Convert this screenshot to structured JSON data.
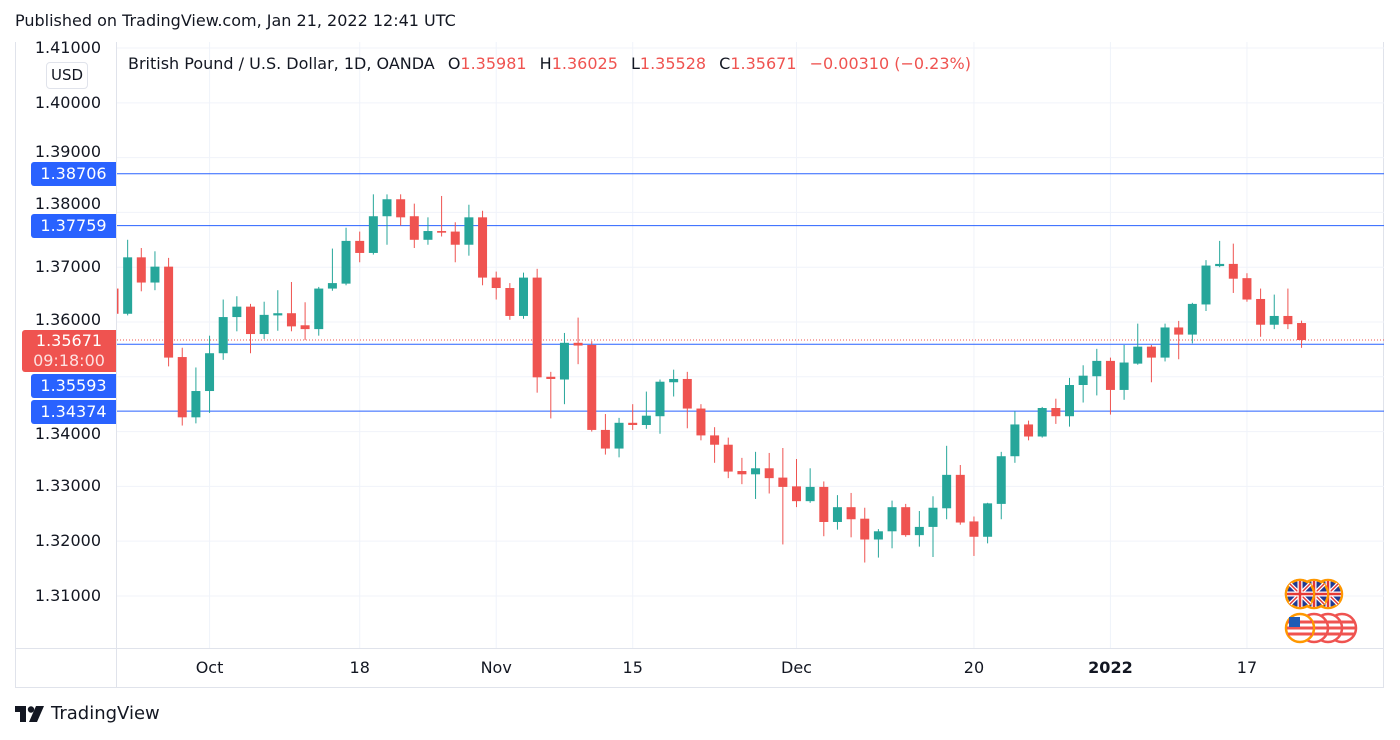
{
  "published": "Published on TradingView.com, Jan 21, 2022 12:41 UTC",
  "currency_badge": "USD",
  "legend": {
    "symbol": "British Pound / U.S. Dollar, 1D, OANDA",
    "o_key": "O",
    "o_val": "1.35981",
    "h_key": "H",
    "h_val": "1.36025",
    "l_key": "L",
    "l_val": "1.35528",
    "c_key": "C",
    "c_val": "1.35671",
    "change": "−0.00310 (−0.23%)"
  },
  "colors": {
    "up": "#26a69a",
    "down": "#ef5350",
    "level": "#2962ff",
    "grid": "#f0f3fa"
  },
  "footer": {
    "brand": "TradingView"
  },
  "chart_data": {
    "type": "candlestick",
    "title": "British Pound / U.S. Dollar, 1D, OANDA",
    "ylim": [
      1.3005,
      1.4111
    ],
    "grid": true,
    "price_ticks": [
      {
        "label": "1.41000",
        "value": 1.41
      },
      {
        "label": "1.40000",
        "value": 1.4
      },
      {
        "label": "1.39000",
        "value": 1.39
      },
      {
        "label": "1.38000",
        "value": 1.38
      },
      {
        "label": "1.37000",
        "value": 1.37
      },
      {
        "label": "1.36000",
        "value": 1.36
      },
      {
        "label": "1.34000",
        "value": 1.34
      },
      {
        "label": "1.33000",
        "value": 1.33
      },
      {
        "label": "1.32000",
        "value": 1.32
      },
      {
        "label": "1.31000",
        "value": 1.31
      }
    ],
    "time_ticks": [
      {
        "label": "Oct",
        "bar": 7,
        "bold": false
      },
      {
        "label": "18",
        "bar": 18,
        "bold": false
      },
      {
        "label": "Nov",
        "bar": 28,
        "bold": false
      },
      {
        "label": "15",
        "bar": 38,
        "bold": false
      },
      {
        "label": "Dec",
        "bar": 50,
        "bold": false
      },
      {
        "label": "20",
        "bar": 63,
        "bold": false
      },
      {
        "label": "2022",
        "bar": 73,
        "bold": true
      },
      {
        "label": "17",
        "bar": 83,
        "bold": false
      }
    ],
    "levels": [
      {
        "label": "1.38706",
        "value": 1.38706
      },
      {
        "label": "1.37759",
        "value": 1.37759
      },
      {
        "label": "1.35593",
        "value": 1.35593
      },
      {
        "label": "1.34374",
        "value": 1.34374
      }
    ],
    "current_price": {
      "label": "1.35671",
      "value": 1.35671,
      "countdown": "09:18:00"
    },
    "ohlc": [
      [
        1.3661,
        1.3665,
        1.3612,
        1.3615
      ],
      [
        1.3615,
        1.375,
        1.3612,
        1.3718
      ],
      [
        1.3718,
        1.3735,
        1.3656,
        1.3672
      ],
      [
        1.3672,
        1.3729,
        1.3658,
        1.3701
      ],
      [
        1.3701,
        1.3717,
        1.3519,
        1.3535
      ],
      [
        1.3536,
        1.3553,
        1.3411,
        1.3426
      ],
      [
        1.3426,
        1.3517,
        1.3415,
        1.3474
      ],
      [
        1.3474,
        1.3575,
        1.3434,
        1.3543
      ],
      [
        1.3543,
        1.3641,
        1.3531,
        1.3609
      ],
      [
        1.3609,
        1.3647,
        1.3583,
        1.3628
      ],
      [
        1.3628,
        1.3633,
        1.3543,
        1.3578
      ],
      [
        1.3578,
        1.3637,
        1.3569,
        1.3613
      ],
      [
        1.3612,
        1.3658,
        1.3584,
        1.3616
      ],
      [
        1.3616,
        1.3673,
        1.3583,
        1.3592
      ],
      [
        1.3594,
        1.3636,
        1.3567,
        1.3587
      ],
      [
        1.3587,
        1.3664,
        1.3575,
        1.3661
      ],
      [
        1.3661,
        1.3734,
        1.3657,
        1.3671
      ],
      [
        1.367,
        1.3772,
        1.3667,
        1.3748
      ],
      [
        1.3748,
        1.3765,
        1.3709,
        1.3726
      ],
      [
        1.3726,
        1.3833,
        1.3723,
        1.3793
      ],
      [
        1.3793,
        1.3833,
        1.3741,
        1.3824
      ],
      [
        1.3824,
        1.3833,
        1.3776,
        1.3791
      ],
      [
        1.3793,
        1.3816,
        1.3735,
        1.375
      ],
      [
        1.375,
        1.3791,
        1.3741,
        1.3766
      ],
      [
        1.3766,
        1.383,
        1.3756,
        1.3763
      ],
      [
        1.3765,
        1.3782,
        1.3709,
        1.3741
      ],
      [
        1.3741,
        1.3814,
        1.3721,
        1.3791
      ],
      [
        1.3791,
        1.3803,
        1.3667,
        1.3681
      ],
      [
        1.3681,
        1.3692,
        1.3641,
        1.3662
      ],
      [
        1.3662,
        1.3671,
        1.3604,
        1.3611
      ],
      [
        1.3611,
        1.369,
        1.3606,
        1.3681
      ],
      [
        1.3681,
        1.3697,
        1.3471,
        1.3499
      ],
      [
        1.35,
        1.3509,
        1.3424,
        1.3496
      ],
      [
        1.3495,
        1.358,
        1.345,
        1.3562
      ],
      [
        1.3562,
        1.3608,
        1.3523,
        1.3557
      ],
      [
        1.3558,
        1.3565,
        1.34,
        1.3403
      ],
      [
        1.3403,
        1.3432,
        1.3358,
        1.3369
      ],
      [
        1.3369,
        1.3425,
        1.3353,
        1.3416
      ],
      [
        1.3416,
        1.345,
        1.3403,
        1.3412
      ],
      [
        1.3412,
        1.3473,
        1.3405,
        1.3429
      ],
      [
        1.3428,
        1.3495,
        1.3396,
        1.3491
      ],
      [
        1.349,
        1.3513,
        1.3464,
        1.3496
      ],
      [
        1.3496,
        1.3509,
        1.3406,
        1.3442
      ],
      [
        1.3442,
        1.345,
        1.3384,
        1.3393
      ],
      [
        1.3393,
        1.3408,
        1.3343,
        1.3376
      ],
      [
        1.3376,
        1.3389,
        1.3315,
        1.3327
      ],
      [
        1.3328,
        1.3352,
        1.3304,
        1.3322
      ],
      [
        1.3322,
        1.3363,
        1.3277,
        1.3333
      ],
      [
        1.3333,
        1.3361,
        1.3287,
        1.3315
      ],
      [
        1.3316,
        1.337,
        1.3194,
        1.3299
      ],
      [
        1.33,
        1.335,
        1.3262,
        1.3273
      ],
      [
        1.3273,
        1.3333,
        1.327,
        1.3299
      ],
      [
        1.3299,
        1.3309,
        1.3209,
        1.3235
      ],
      [
        1.3235,
        1.3284,
        1.3221,
        1.3262
      ],
      [
        1.3262,
        1.3288,
        1.3207,
        1.324
      ],
      [
        1.3241,
        1.3261,
        1.3161,
        1.3203
      ],
      [
        1.3203,
        1.3222,
        1.317,
        1.3218
      ],
      [
        1.3218,
        1.3274,
        1.3187,
        1.3262
      ],
      [
        1.3262,
        1.3268,
        1.3208,
        1.3211
      ],
      [
        1.3211,
        1.3255,
        1.319,
        1.3226
      ],
      [
        1.3226,
        1.3282,
        1.3171,
        1.3261
      ],
      [
        1.326,
        1.3374,
        1.324,
        1.3321
      ],
      [
        1.3321,
        1.3339,
        1.323,
        1.3234
      ],
      [
        1.3236,
        1.3245,
        1.3173,
        1.3208
      ],
      [
        1.3208,
        1.327,
        1.3196,
        1.3269
      ],
      [
        1.3268,
        1.3363,
        1.324,
        1.3355
      ],
      [
        1.3355,
        1.3437,
        1.3343,
        1.3413
      ],
      [
        1.3413,
        1.342,
        1.3384,
        1.3391
      ],
      [
        1.3391,
        1.3445,
        1.3389,
        1.3443
      ],
      [
        1.3443,
        1.346,
        1.3414,
        1.3428
      ],
      [
        1.3428,
        1.3498,
        1.3409,
        1.3485
      ],
      [
        1.3485,
        1.3521,
        1.3453,
        1.3502
      ],
      [
        1.3501,
        1.3551,
        1.3466,
        1.3529
      ],
      [
        1.3529,
        1.3535,
        1.3431,
        1.3476
      ],
      [
        1.3476,
        1.3558,
        1.3458,
        1.3526
      ],
      [
        1.3524,
        1.3597,
        1.3522,
        1.3555
      ],
      [
        1.3555,
        1.3558,
        1.349,
        1.3535
      ],
      [
        1.3535,
        1.3597,
        1.3528,
        1.359
      ],
      [
        1.359,
        1.3602,
        1.3532,
        1.3577
      ],
      [
        1.3577,
        1.3635,
        1.3561,
        1.3633
      ],
      [
        1.3632,
        1.3713,
        1.362,
        1.3703
      ],
      [
        1.3702,
        1.3748,
        1.37,
        1.3706
      ],
      [
        1.3706,
        1.3743,
        1.3653,
        1.3679
      ],
      [
        1.368,
        1.3689,
        1.3637,
        1.3641
      ],
      [
        1.3642,
        1.3661,
        1.3573,
        1.3595
      ],
      [
        1.3595,
        1.365,
        1.3587,
        1.3611
      ],
      [
        1.3611,
        1.3661,
        1.3587,
        1.3596
      ],
      [
        1.35981,
        1.36025,
        1.35528,
        1.35671
      ]
    ]
  }
}
